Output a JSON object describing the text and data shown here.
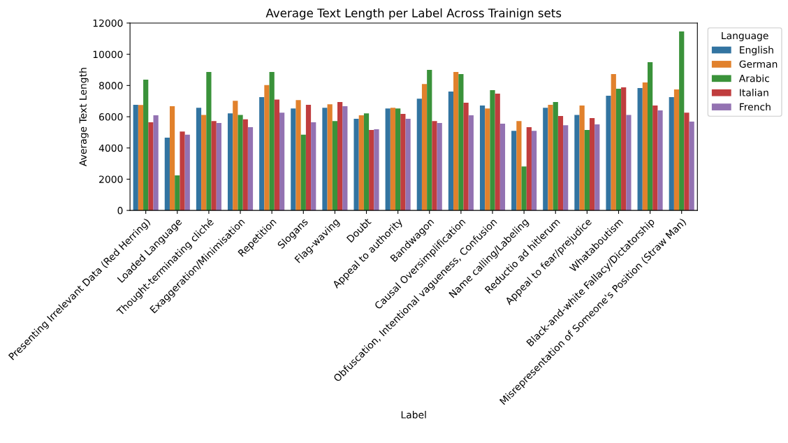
{
  "chart_data": {
    "type": "bar",
    "title": "Average Text Length per Label Across Trainign sets",
    "xlabel": "Label",
    "ylabel": "Average Text Length",
    "legend_title": "Language",
    "legend": "right",
    "grid": false,
    "categories": [
      "Presenting Irrelevant Data (Red Herring)",
      "Loaded Language",
      "Thought-terminating cliché",
      "Exaggeration/Minimisation",
      "Repetition",
      "Slogans",
      "Flag-waving",
      "Doubt",
      "Appeal to authority",
      "Bandwagon",
      "Causal Oversimplification",
      "Obfuscation, Intentional vagueness, Confusion",
      "Name calling/Labeling",
      "Reductio ad hitlerum",
      "Appeal to fear/prejudice",
      "Whataboutism",
      "Black-and-white Fallacy/Dictatorship",
      "Misrepresentation of Someone's Position (Straw Man)"
    ],
    "ylim": [
      0,
      12000
    ],
    "yticks": [
      0,
      2000,
      4000,
      6000,
      8000,
      10000,
      12000
    ],
    "series": [
      {
        "name": "English",
        "color": "#3274a1",
        "values": [
          6760,
          4660,
          6570,
          6220,
          7250,
          6530,
          6570,
          5870,
          6530,
          7160,
          7610,
          6720,
          5100,
          6570,
          6120,
          7340,
          7840,
          7250
        ]
      },
      {
        "name": "German",
        "color": "#e1812c",
        "values": [
          6750,
          6670,
          6120,
          7020,
          8030,
          7070,
          6800,
          6090,
          6570,
          8100,
          8870,
          6530,
          5720,
          6760,
          6720,
          8730,
          8200,
          7750
        ]
      },
      {
        "name": "Arabic",
        "color": "#3a923a",
        "values": [
          8370,
          2240,
          8870,
          6120,
          8870,
          4850,
          5720,
          6220,
          6530,
          9000,
          8730,
          7700,
          2820,
          6940,
          5150,
          7790,
          9490,
          11460
        ]
      },
      {
        "name": "Italian",
        "color": "#c03d3e",
        "values": [
          5640,
          5050,
          5720,
          5830,
          7100,
          6760,
          6940,
          5150,
          6180,
          5720,
          6900,
          7480,
          5330,
          6050,
          5910,
          7880,
          6720,
          6260
        ]
      },
      {
        "name": "French",
        "color": "#9372b2",
        "values": [
          6090,
          4850,
          5600,
          5330,
          6260,
          5640,
          6670,
          5200,
          5870,
          5600,
          6090,
          5550,
          5100,
          5460,
          5510,
          6120,
          6400,
          5690
        ]
      }
    ]
  }
}
